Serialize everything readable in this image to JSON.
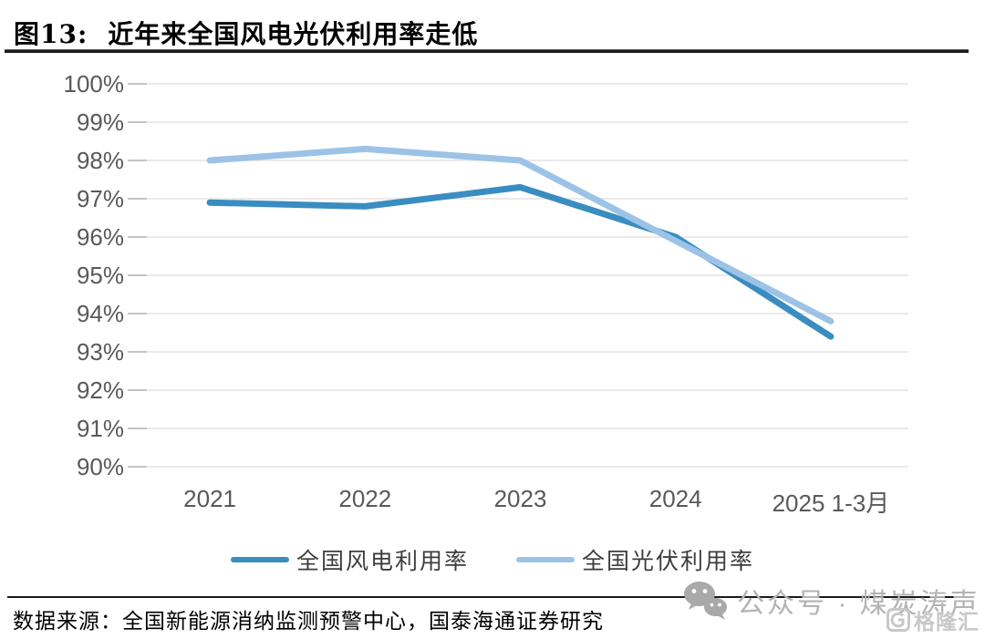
{
  "figure": {
    "title_prefix": "图13:",
    "title_text": "近年来全国风电光伏利用率走低"
  },
  "chart_data": {
    "type": "line",
    "categories": [
      "2021",
      "2022",
      "2023",
      "2024",
      "2025 1-3月"
    ],
    "series": [
      {
        "name": "全国风电利用率",
        "color": "#3a8dc0",
        "values": [
          96.9,
          96.8,
          97.3,
          96.0,
          93.4
        ]
      },
      {
        "name": "全国光伏利用率",
        "color": "#9cc3e6",
        "values": [
          98.0,
          98.3,
          98.0,
          95.9,
          93.8
        ]
      }
    ],
    "ylim": [
      90,
      100
    ],
    "ytick_step": 1,
    "ytick_labels": [
      "100%",
      "99%",
      "98%",
      "97%",
      "96%",
      "95%",
      "94%",
      "93%",
      "92%",
      "91%",
      "90%"
    ],
    "grid": "horizontal",
    "legend_position": "bottom",
    "unit": "percent"
  },
  "footer": {
    "source": "数据来源：全国新能源消纳监测预警中心，国泰海通证券研究"
  },
  "watermark": {
    "wechat_label": "公众号 · 煤炭涛声",
    "logo_text": "格隆汇"
  },
  "style": {
    "grid_color": "#e4e4e4",
    "tick_color": "#c4c4c4",
    "axis_text_color": "#595959",
    "line_width": 7
  }
}
